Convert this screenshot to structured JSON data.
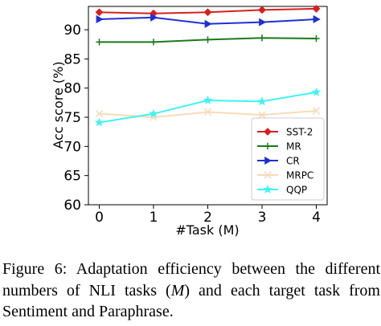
{
  "chart_data": {
    "type": "line",
    "xlabel": "#Task (M)",
    "ylabel": "Acc score (%)",
    "x": [
      0,
      1,
      2,
      3,
      4
    ],
    "xlim": [
      -0.2,
      4.2
    ],
    "ylim": [
      60,
      94
    ],
    "yticks": [
      60,
      65,
      70,
      75,
      80,
      85,
      90
    ],
    "grid": false,
    "legend_position": "lower-right",
    "series": [
      {
        "name": "SST-2",
        "color": "#d62020",
        "marker": "diamond",
        "values": [
          93.0,
          92.8,
          93.0,
          93.4,
          93.6
        ]
      },
      {
        "name": "MR",
        "color": "#1a7a1a",
        "marker": "plus",
        "values": [
          87.9,
          87.9,
          88.3,
          88.6,
          88.5
        ]
      },
      {
        "name": "CR",
        "color": "#1f2fd6",
        "marker": "triangle-right",
        "values": [
          91.8,
          92.1,
          91.0,
          91.3,
          91.8
        ]
      },
      {
        "name": "MRPC",
        "color": "#f7dbb8",
        "marker": "x",
        "values": [
          75.6,
          75.0,
          75.9,
          75.4,
          76.1
        ]
      },
      {
        "name": "QQP",
        "color": "#3ff3f3",
        "marker": "star",
        "values": [
          74.1,
          75.6,
          77.9,
          77.7,
          79.3
        ]
      }
    ]
  },
  "caption": {
    "line1": "Figure 6:  Adaptation efficiency between the different",
    "line2_pre": "numbers of NLI tasks (",
    "line2_var": "M",
    "line2_post": ") and each target task from",
    "line3": "Sentiment and Paraphrase."
  }
}
